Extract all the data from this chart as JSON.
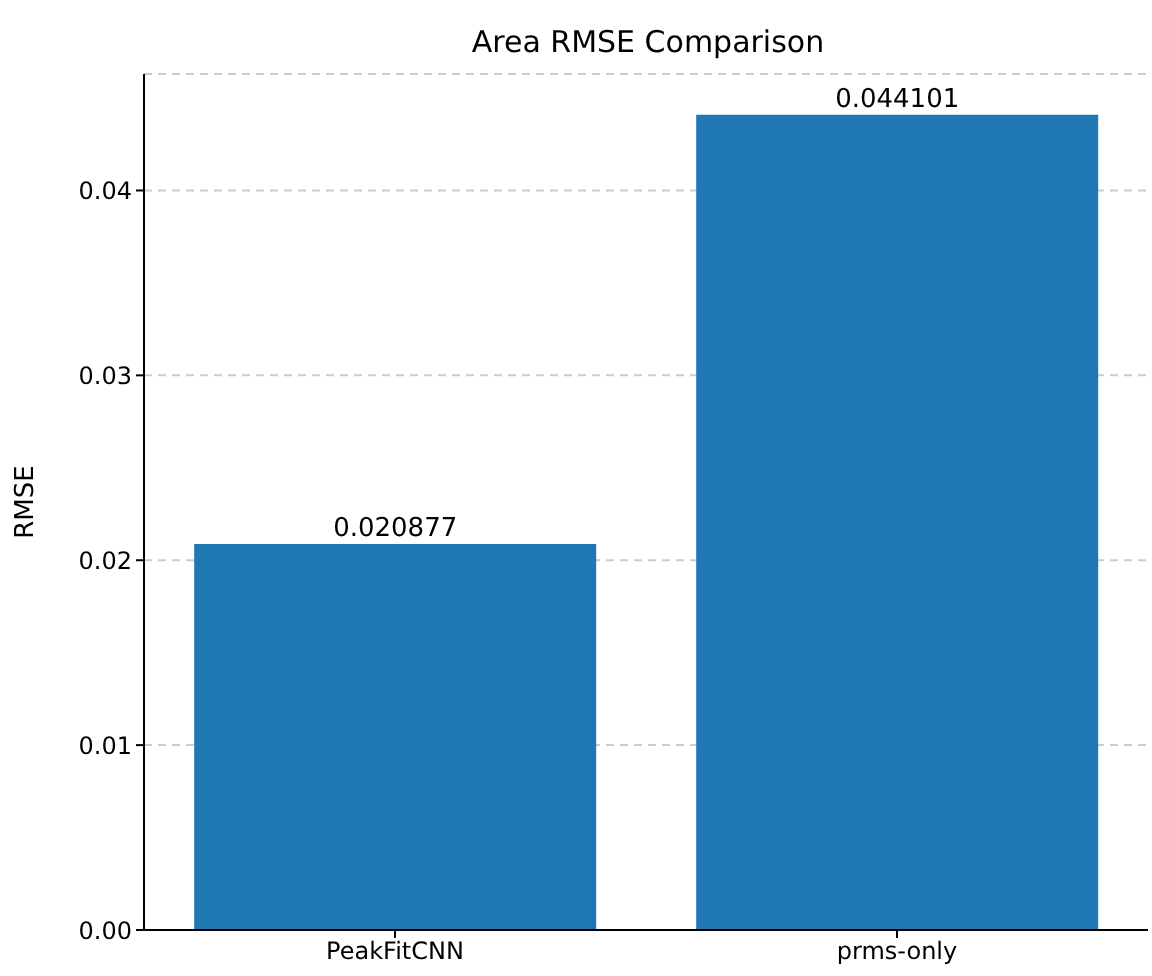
{
  "chart_data": {
    "type": "bar",
    "title": "Area RMSE Comparison",
    "ylabel": "RMSE",
    "categories": [
      "PeakFitCNN",
      "prms-only"
    ],
    "values": [
      0.020877,
      0.044101
    ],
    "color": "#1f77b4",
    "ylim": [
      0,
      0.0463
    ],
    "yticks": [
      {
        "value": 0,
        "label": "0.00"
      },
      0.01,
      0.02,
      0.03,
      0.04
    ],
    "grid": "y",
    "data_labels": true,
    "legend": false
  }
}
